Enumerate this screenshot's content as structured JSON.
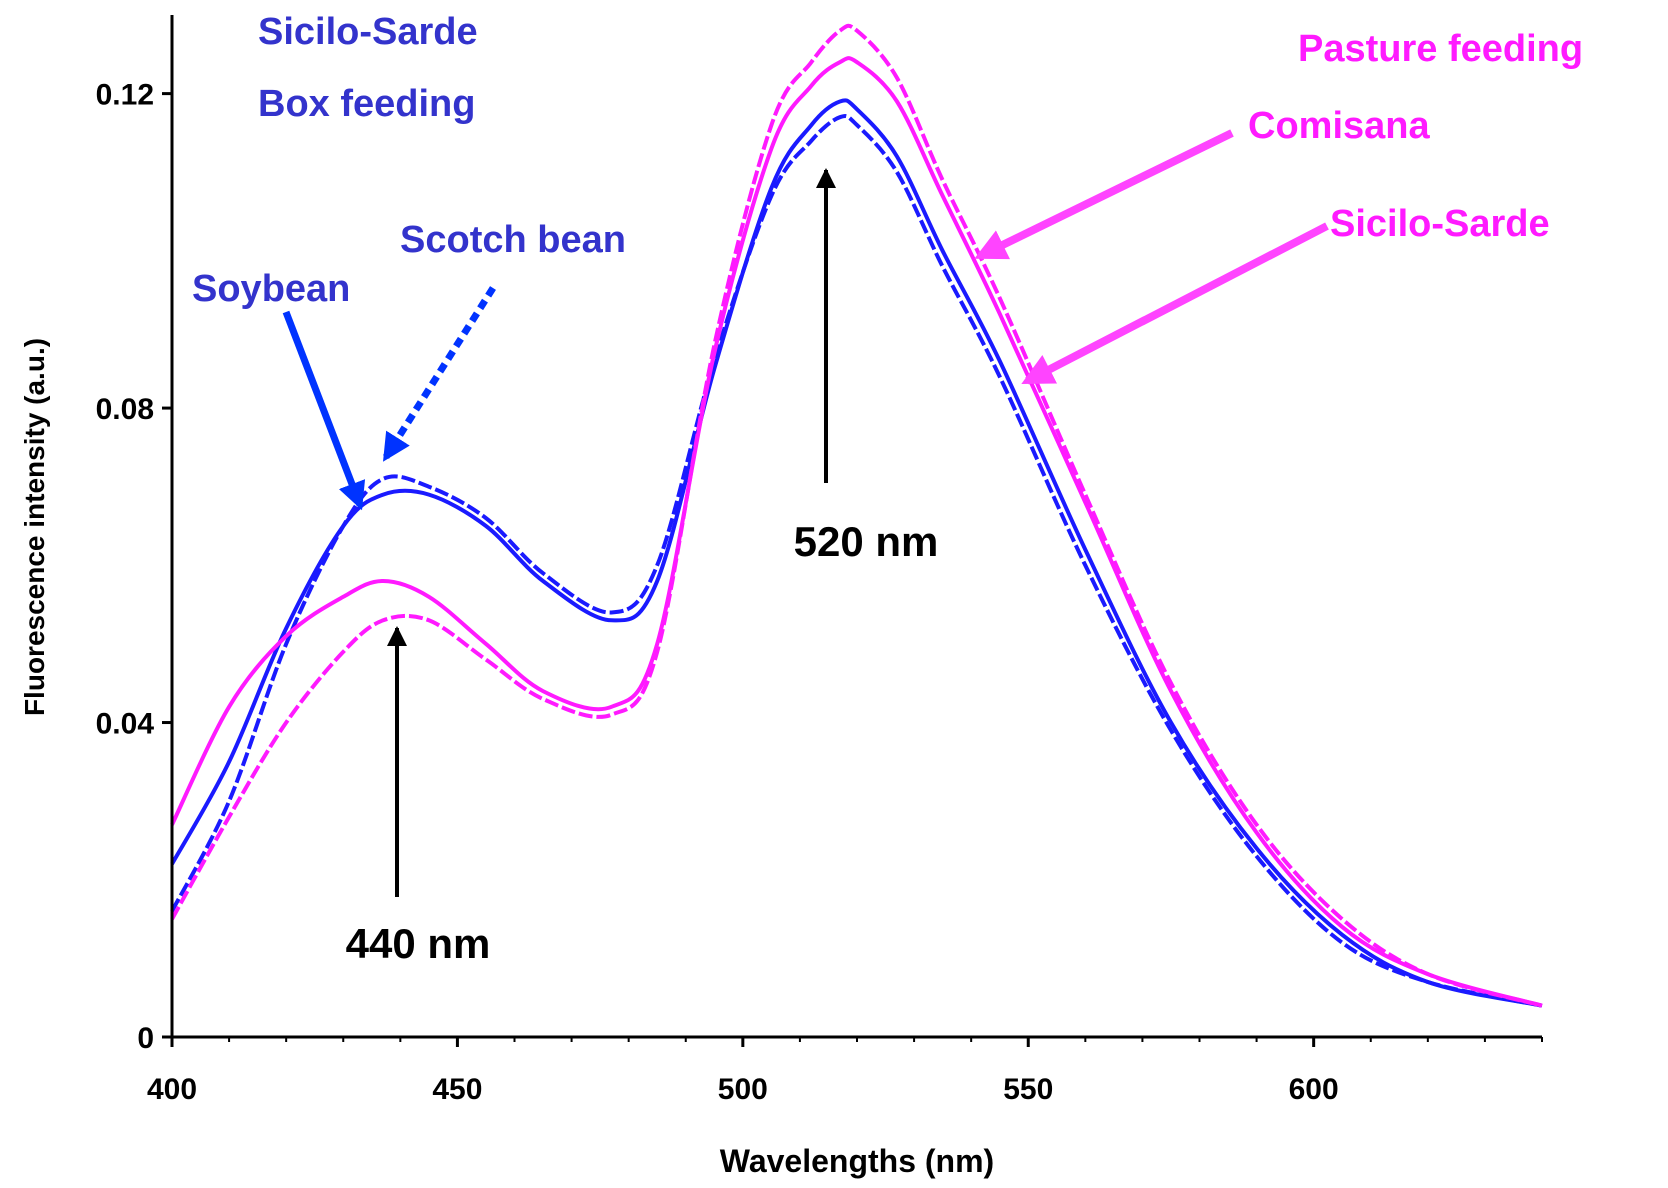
{
  "chart_data": {
    "type": "line",
    "title": "",
    "xlabel": "Wavelengths (nm)",
    "ylabel": "Fluorescence intensity (a.u.)",
    "xlim": [
      400,
      640
    ],
    "ylim": [
      0,
      0.13
    ],
    "x_ticks": [
      "400",
      "450",
      "500",
      "550",
      "600"
    ],
    "y_ticks": [
      "0",
      "0.04",
      "0.08",
      "0.12"
    ],
    "x_tick_values": [
      400,
      450,
      500,
      550,
      600
    ],
    "y_tick_values": [
      0,
      0.04,
      0.08,
      0.12
    ],
    "grid": false,
    "legend": "none",
    "x": [
      400,
      410,
      420,
      430,
      437,
      445,
      455,
      465,
      477,
      485,
      495,
      505,
      512,
      517,
      520,
      527,
      535,
      545,
      560,
      575,
      590,
      605,
      620,
      640
    ],
    "series": [
      {
        "color": "#1a1aff",
        "dash": "solid",
        "values": [
          0.022,
          0.035,
          0.052,
          0.065,
          0.069,
          0.069,
          0.065,
          0.058,
          0.053,
          0.058,
          0.085,
          0.108,
          0.116,
          0.119,
          0.118,
          0.112,
          0.1,
          0.086,
          0.062,
          0.04,
          0.024,
          0.013,
          0.007,
          0.004
        ]
      },
      {
        "color": "#1a1aff",
        "dash": "dashed",
        "values": [
          0.016,
          0.03,
          0.05,
          0.065,
          0.071,
          0.07,
          0.066,
          0.059,
          0.054,
          0.06,
          0.086,
          0.107,
          0.114,
          0.117,
          0.116,
          0.11,
          0.098,
          0.084,
          0.06,
          0.039,
          0.023,
          0.012,
          0.007,
          0.004
        ]
      },
      {
        "color": "#ff1aff",
        "dash": "solid",
        "values": [
          0.027,
          0.042,
          0.051,
          0.056,
          0.058,
          0.056,
          0.05,
          0.044,
          0.042,
          0.05,
          0.087,
          0.113,
          0.121,
          0.124,
          0.124,
          0.119,
          0.107,
          0.092,
          0.068,
          0.044,
          0.026,
          0.014,
          0.008,
          0.004
        ]
      },
      {
        "color": "#ff1aff",
        "dash": "dashed",
        "values": [
          0.015,
          0.028,
          0.04,
          0.049,
          0.053,
          0.053,
          0.048,
          0.043,
          0.041,
          0.049,
          0.088,
          0.116,
          0.124,
          0.128,
          0.128,
          0.122,
          0.109,
          0.094,
          0.069,
          0.045,
          0.027,
          0.015,
          0.008,
          0.004
        ]
      }
    ],
    "annotations": {
      "group_box_line1": "Sicilo-Sarde",
      "group_box_line2": "Box feeding",
      "group_pasture": "Pasture feeding",
      "label_comisana": "Comisana",
      "label_sicilo_sarde": "Sicilo-Sarde",
      "label_scotch_bean": "Scotch bean",
      "label_soybean": "Soybean",
      "peak_440": "440 nm",
      "peak_520": "520 nm"
    },
    "colors": {
      "blue_text": "#3333cc",
      "magenta_text": "#ff1aff",
      "blue_arrow": "#0033ff",
      "magenta_arrow": "#ff44ff",
      "axis": "#000000"
    }
  }
}
